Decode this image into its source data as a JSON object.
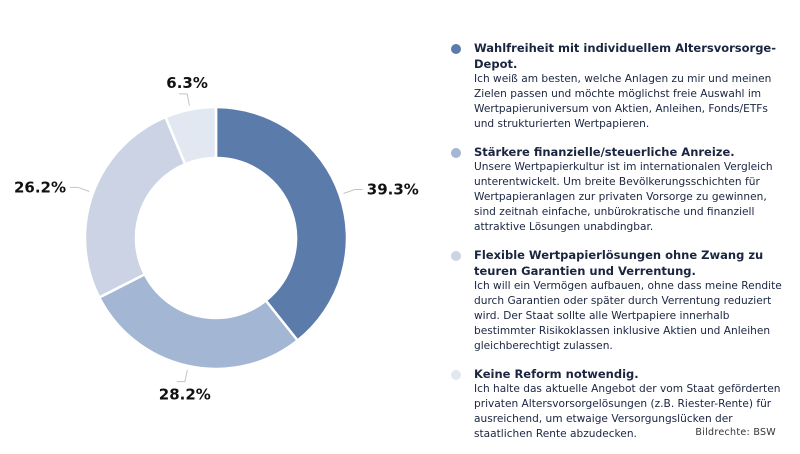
{
  "chart_data": {
    "type": "pie",
    "variant": "donut",
    "values": [
      39.3,
      28.2,
      26.2,
      6.3
    ],
    "labels": [
      "39.3%",
      "28.2%",
      "26.2%",
      "6.3%"
    ],
    "colors": [
      "#5b7bab",
      "#a3b6d3",
      "#cbd3e4",
      "#e2e8f1"
    ],
    "legend_placement": "right"
  },
  "legend": [
    {
      "title": "Wahlfreiheit mit individuellem Altersvorsorge-Depot.",
      "text": "Ich weiß am besten, welche Anlagen zu mir und meinen Zielen passen und möchte möglichst freie Auswahl im Wertpapieruniversum von Aktien, Anleihen, Fonds/ETFs und strukturierten Wertpapieren."
    },
    {
      "title": "Stärkere finanzielle/steuerliche Anreize.",
      "text": "Unsere Wertpapierkultur ist im internationalen Vergleich unterentwickelt. Um breite Bevölkerungsschichten für Wertpapieranlagen zur privaten Vorsorge zu gewinnen, sind zeitnah einfache, unbürokratische und finanziell attraktive Lösungen unabdingbar."
    },
    {
      "title": "Flexible Wertpapierlösungen ohne Zwang zu teuren Garantien und Verrentung.",
      "text": "Ich will ein Vermögen aufbauen, ohne dass meine Rendite durch Garantien oder später durch Verrentung reduziert wird. Der Staat sollte alle Wertpapiere innerhalb bestimmter Risikoklassen inklusive Aktien und Anleihen gleichberechtigt zulassen."
    },
    {
      "title": "Keine Reform notwendig.",
      "text": "Ich halte das aktuelle Angebot der vom Staat geförderten privaten Altersvorsorgelösungen (z.B. Riester-Rente) für ausreichend, um etwaige Versorgungslücken der staatlichen Rente abzudecken."
    }
  ],
  "credit": "Bildrechte: BSW"
}
